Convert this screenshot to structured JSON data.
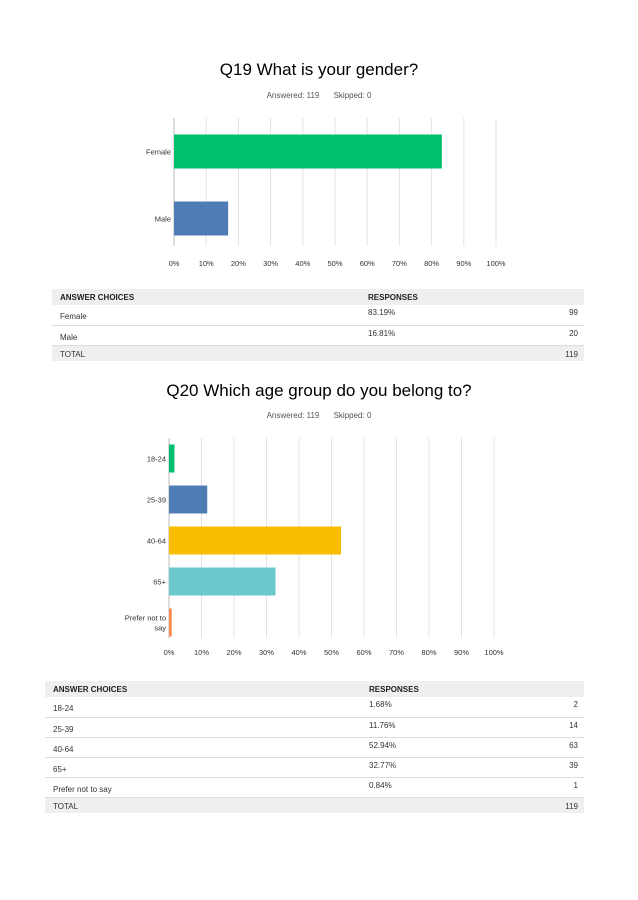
{
  "questions": [
    {
      "title": "Q19 What is your gender?",
      "answered": "Answered: 119",
      "skipped": "Skipped: 0",
      "table": {
        "header_choice": "ANSWER CHOICES",
        "header_responses": "RESPONSES",
        "rows": [
          {
            "choice": "Female",
            "percent": "83.19%",
            "count": "99"
          },
          {
            "choice": "Male",
            "percent": "16.81%",
            "count": "20"
          }
        ],
        "total_label": "TOTAL",
        "total_count": "119"
      }
    },
    {
      "title": "Q20 Which age group do you belong to?",
      "answered": "Answered: 119",
      "skipped": "Skipped: 0",
      "table": {
        "header_choice": "ANSWER CHOICES",
        "header_responses": "RESPONSES",
        "rows": [
          {
            "choice": "18-24",
            "percent": "1.68%",
            "count": "2"
          },
          {
            "choice": "25-39",
            "percent": "11.76%",
            "count": "14"
          },
          {
            "choice": "40-64",
            "percent": "52.94%",
            "count": "63"
          },
          {
            "choice": "65+",
            "percent": "32.77%",
            "count": "39"
          },
          {
            "choice": "Prefer not to say",
            "percent": "0.84%",
            "count": "1"
          }
        ],
        "total_label": "TOTAL",
        "total_count": "119"
      }
    }
  ],
  "chart_data": [
    {
      "type": "bar",
      "orientation": "horizontal",
      "title": "Q19 What is your gender?",
      "categories": [
        "Female",
        "Male"
      ],
      "values": [
        83.19,
        16.81
      ],
      "colors": [
        "#00bf6f",
        "#507cb6"
      ],
      "xlim": [
        0,
        100
      ],
      "xticks": [
        "0%",
        "10%",
        "20%",
        "30%",
        "40%",
        "50%",
        "60%",
        "70%",
        "80%",
        "90%",
        "100%"
      ],
      "grid": true
    },
    {
      "type": "bar",
      "orientation": "horizontal",
      "title": "Q20 Which age group do you belong to?",
      "categories": [
        "18-24",
        "25-39",
        "40-64",
        "65+",
        "Prefer not to say"
      ],
      "category_label_lines": [
        [
          "18-24"
        ],
        [
          "25-39"
        ],
        [
          "40-64"
        ],
        [
          "65+"
        ],
        [
          "Prefer not to",
          "say"
        ]
      ],
      "values": [
        1.68,
        11.76,
        52.94,
        32.77,
        0.84
      ],
      "colors": [
        "#00bf6f",
        "#507cb6",
        "#f9be00",
        "#6bc8cd",
        "#ff8b4f"
      ],
      "xlim": [
        0,
        100
      ],
      "xticks": [
        "0%",
        "10%",
        "20%",
        "30%",
        "40%",
        "50%",
        "60%",
        "70%",
        "80%",
        "90%",
        "100%"
      ],
      "grid": true
    }
  ]
}
